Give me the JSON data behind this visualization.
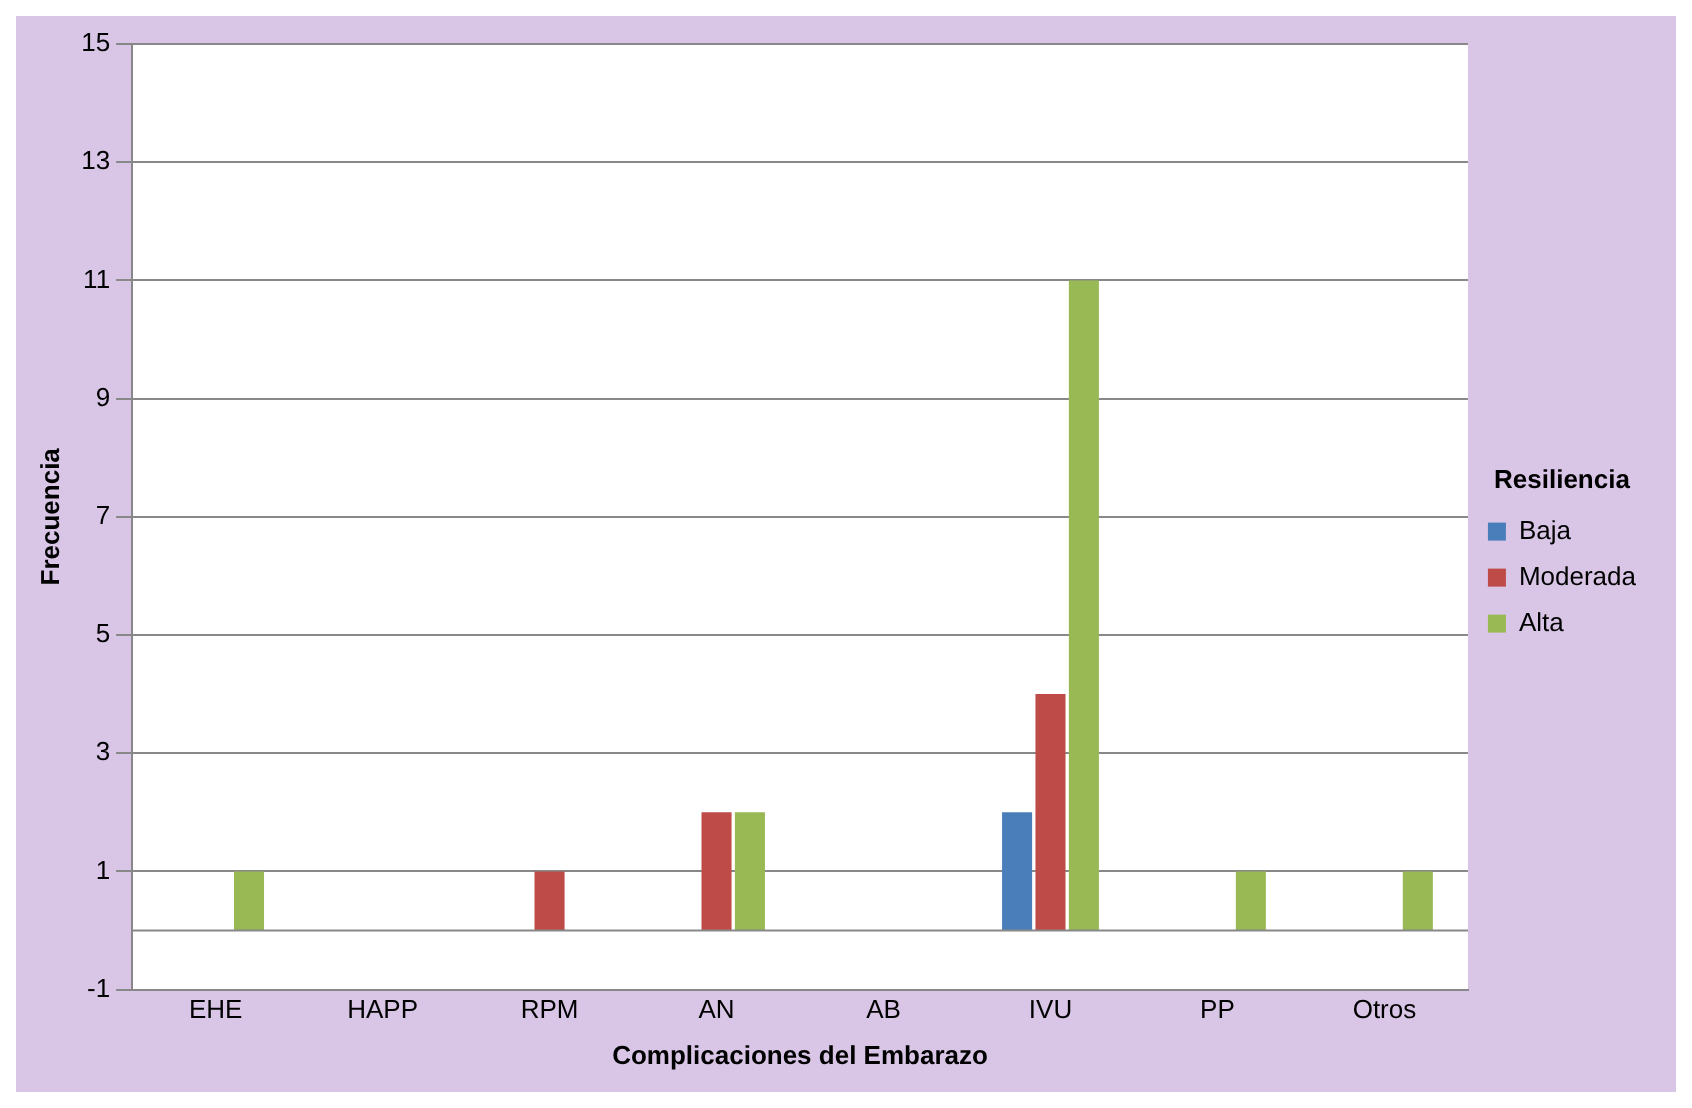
{
  "chart_data": {
    "type": "bar",
    "xlabel": "Complicaciones del Embarazo",
    "ylabel": "Frecuencia",
    "legend_title": "Resiliencia",
    "categories": [
      "EHE",
      "HAPP",
      "RPM",
      "AN",
      "AB",
      "IVU",
      "PP",
      "Otros"
    ],
    "series": [
      {
        "name": "Baja",
        "color": "#4a7ebb",
        "values": [
          0,
          0,
          0,
          0,
          0,
          2,
          0,
          0
        ]
      },
      {
        "name": "Moderada",
        "color": "#be4b48",
        "values": [
          0,
          0,
          1,
          2,
          0,
          4,
          0,
          0
        ]
      },
      {
        "name": "Alta",
        "color": "#98b954",
        "values": [
          1,
          0,
          0,
          2,
          0,
          11,
          1,
          1
        ]
      }
    ],
    "ylim": [
      -1,
      15
    ],
    "yticks": [
      -1,
      1,
      3,
      5,
      7,
      9,
      11,
      13,
      15
    ],
    "grid": "y",
    "legend": "right"
  }
}
